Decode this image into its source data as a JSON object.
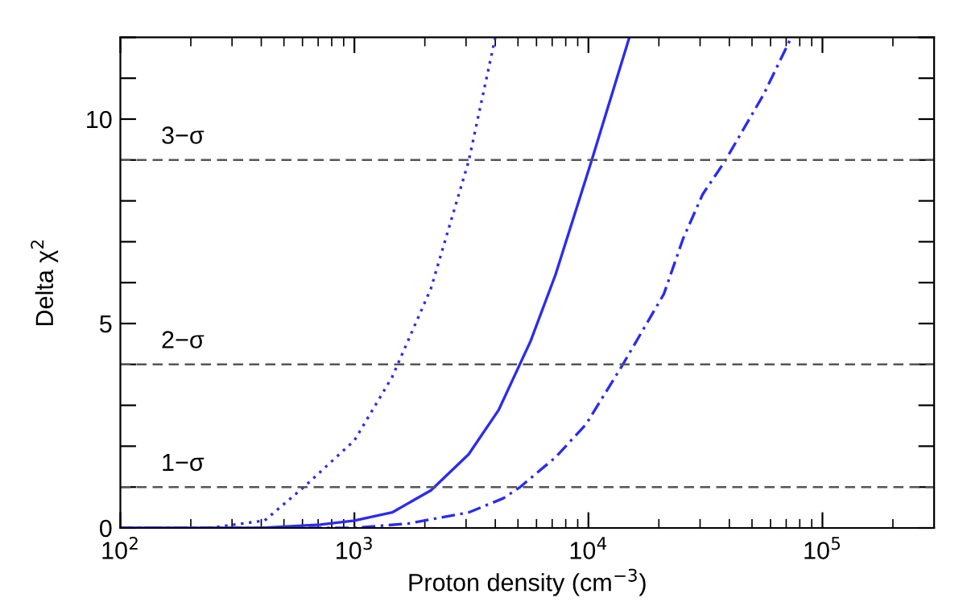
{
  "chart_data": {
    "type": "line",
    "xlabel": "Proton density (cm$^{−3}$)",
    "ylabel": "Delta χ$^{2}$",
    "log": "x",
    "grid": false,
    "legend": false,
    "marker": "none",
    "xlim": [
      100,
      300000
    ],
    "ylim": [
      0,
      12
    ],
    "xticks": [
      {
        "value": 100,
        "label": "10$^{2}$"
      },
      {
        "value": 1000,
        "label": "10$^{3}$"
      },
      {
        "value": 10000,
        "label": "10$^{4}$"
      },
      {
        "value": 100000,
        "label": "10$^{5}$"
      }
    ],
    "yticks": [
      0,
      {
        "value": 1,
        "label": null
      },
      {
        "value": 2,
        "label": null
      },
      {
        "value": 3,
        "label": null
      },
      {
        "value": 4,
        "label": null
      },
      5,
      {
        "value": 6,
        "label": null
      },
      {
        "value": 7,
        "label": null
      },
      {
        "value": 8,
        "label": null
      },
      {
        "value": 9,
        "label": null
      },
      10,
      {
        "value": 11,
        "label": null
      },
      {
        "value": 12,
        "label": null
      }
    ],
    "series": [
      {
        "color": "#2b2bf0",
        "line_style": "dotted",
        "x": [
          100,
          240,
          413,
          605,
          1000,
          1449,
          2124,
          3077,
          4000
        ],
        "values": [
          0,
          0,
          0.18,
          0.99,
          2.14,
          3.69,
          5.86,
          8.97,
          12
        ]
      },
      {
        "color": "#2b2bf0",
        "line_style": "solid",
        "x": [
          100,
          400,
          713,
          1000,
          1450,
          2124,
          3077,
          4130,
          5660,
          7240,
          10300,
          14960
        ],
        "values": [
          0,
          0,
          0.08,
          0.18,
          0.38,
          0.92,
          1.8,
          2.88,
          4.57,
          6.2,
          8.97,
          12
        ]
      },
      {
        "color": "#2b2bf0",
        "line_style": "dashdot",
        "x": [
          100,
          1000,
          1710,
          3077,
          4310,
          5080,
          7240,
          9780,
          13900,
          21000,
          25400,
          30760,
          38300,
          56000,
          73600
        ],
        "values": [
          0,
          0,
          0.11,
          0.38,
          0.72,
          0.99,
          1.73,
          2.54,
          3.96,
          5.72,
          7.08,
          8.16,
          8.97,
          10.6,
          12
        ]
      }
    ],
    "ref_lines": [
      {
        "axis": "y",
        "value": 1,
        "label": "1−σ",
        "color": "#555555",
        "line_style": "dashed"
      },
      {
        "axis": "y",
        "value": 4,
        "label": "2−σ",
        "color": "#555555",
        "line_style": "dashed"
      },
      {
        "axis": "y",
        "value": 9,
        "label": "3−σ",
        "color": "#555555",
        "line_style": "dashed"
      }
    ]
  }
}
